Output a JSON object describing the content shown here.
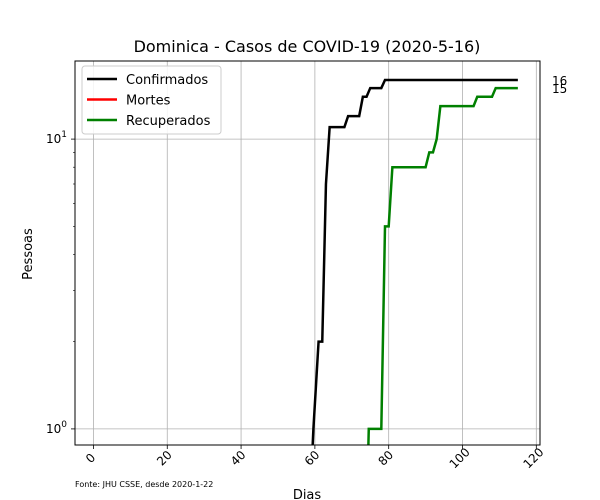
{
  "chart_data": {
    "type": "line",
    "title": "Dominica - Casos de COVID-19 (2020-5-16)",
    "xlabel": "Dias",
    "ylabel": "Pessoas",
    "xlim": [
      -5,
      121
    ],
    "ylim": [
      0.88,
      18.6
    ],
    "yscale": "log",
    "grid": true,
    "legend_position": "top-left",
    "x_ticks": [
      0,
      20,
      40,
      60,
      80,
      100,
      120
    ],
    "y_ticks": [
      {
        "value": 1,
        "base": "10",
        "exp": "0"
      },
      {
        "value": 10,
        "base": "10",
        "exp": "1"
      }
    ],
    "footnote": "Fonte: JHU CSSE, desde 2020-1-22",
    "end_labels": [
      {
        "text": "16",
        "value": 16
      },
      {
        "text": "15",
        "value": 15
      }
    ],
    "series": [
      {
        "name": "Confirmados",
        "color": "#000000",
        "points": [
          [
            59.4,
            0.85
          ],
          [
            59.6,
            1
          ],
          [
            61,
            2
          ],
          [
            62,
            2
          ],
          [
            63,
            7
          ],
          [
            64,
            11
          ],
          [
            68,
            11
          ],
          [
            69,
            12
          ],
          [
            72,
            12
          ],
          [
            73,
            14
          ],
          [
            74,
            14
          ],
          [
            75,
            15
          ],
          [
            78,
            15
          ],
          [
            79,
            16
          ],
          [
            115,
            16
          ]
        ]
      },
      {
        "name": "Mortes",
        "color": "#ff0000",
        "points": []
      },
      {
        "name": "Recuperados",
        "color": "#008000",
        "points": [
          [
            74.5,
            0.85
          ],
          [
            74.6,
            1
          ],
          [
            78,
            1
          ],
          [
            79,
            5
          ],
          [
            80,
            5
          ],
          [
            81,
            8
          ],
          [
            90,
            8
          ],
          [
            91,
            9
          ],
          [
            92,
            9
          ],
          [
            93,
            10
          ],
          [
            94,
            13
          ],
          [
            103,
            13
          ],
          [
            104,
            14
          ],
          [
            108,
            14
          ],
          [
            109,
            15
          ],
          [
            115,
            15
          ]
        ]
      }
    ]
  }
}
